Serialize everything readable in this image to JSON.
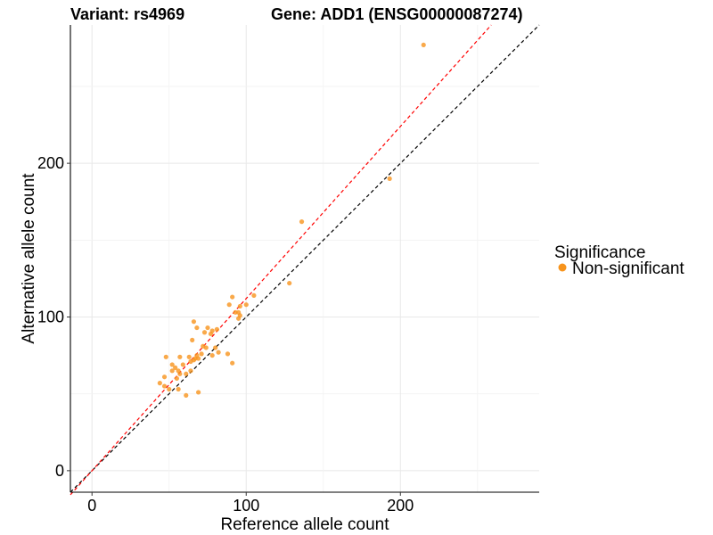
{
  "chart_data": {
    "type": "scatter",
    "title_left": "Variant: rs4969",
    "title_right": "Gene: ADD1 (ENSG00000087274)",
    "xlabel": "Reference allele count",
    "ylabel": "Alternative allele count",
    "xlim": [
      -14,
      290
    ],
    "ylim": [
      -14,
      290
    ],
    "xticks": [
      0,
      100,
      200
    ],
    "yticks": [
      0,
      100,
      200
    ],
    "grid": true,
    "legend": {
      "title": "Significance",
      "placement": "right",
      "entries": [
        {
          "label": "Non-significant",
          "color": "#F7941D"
        }
      ]
    },
    "point_color": "#F7941D",
    "reference_lines": [
      {
        "name": "identity",
        "slope": 1.0,
        "color": "#000000",
        "style": "dashed"
      },
      {
        "name": "fit",
        "slope": 1.12,
        "color": "#FF0000",
        "style": "dashed"
      }
    ],
    "series": [
      {
        "name": "Non-significant",
        "points": [
          [
            215,
            277
          ],
          [
            193,
            190
          ],
          [
            136,
            162
          ],
          [
            128,
            122
          ],
          [
            105,
            114
          ],
          [
            100,
            108
          ],
          [
            96,
            107
          ],
          [
            91,
            113
          ],
          [
            89,
            108
          ],
          [
            93,
            103
          ],
          [
            95,
            103
          ],
          [
            96,
            101
          ],
          [
            95,
            99
          ],
          [
            66,
            97
          ],
          [
            68,
            93
          ],
          [
            75,
            93
          ],
          [
            73,
            90
          ],
          [
            77,
            89
          ],
          [
            81,
            92
          ],
          [
            78,
            91
          ],
          [
            65,
            85
          ],
          [
            72,
            81
          ],
          [
            74,
            80
          ],
          [
            80,
            80
          ],
          [
            82,
            77
          ],
          [
            88,
            76
          ],
          [
            71,
            76
          ],
          [
            78,
            75
          ],
          [
            68,
            75
          ],
          [
            63,
            74
          ],
          [
            48,
            74
          ],
          [
            57,
            74
          ],
          [
            67,
            73
          ],
          [
            69,
            73
          ],
          [
            66,
            72
          ],
          [
            64,
            71
          ],
          [
            59,
            69
          ],
          [
            91,
            70
          ],
          [
            52,
            69
          ],
          [
            54,
            67
          ],
          [
            52,
            65
          ],
          [
            56,
            65
          ],
          [
            64,
            65
          ],
          [
            57,
            63
          ],
          [
            61,
            63
          ],
          [
            47,
            61
          ],
          [
            55,
            60
          ],
          [
            44,
            57
          ],
          [
            47,
            55
          ],
          [
            50,
            53
          ],
          [
            56,
            53
          ],
          [
            69,
            51
          ],
          [
            61,
            49
          ]
        ]
      }
    ]
  }
}
